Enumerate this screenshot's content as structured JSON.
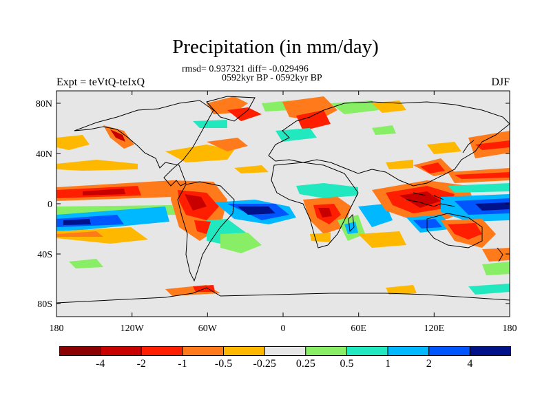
{
  "title": "Precipitation (in mm/day)",
  "stats_line": "rmsd= 0.937321 diff= -0.029496",
  "period_line": "0592kyr BP - 0592kyr BP",
  "experiment_label": "Expt = teVtQ-teIxQ",
  "season_label": "DJF",
  "lat_ticks": [
    "80N",
    "40N",
    "0",
    "40S",
    "80S"
  ],
  "lon_ticks": [
    "180",
    "120W",
    "60W",
    "0",
    "60E",
    "120E",
    "180"
  ],
  "colorbar": {
    "colors": [
      "#8b0000",
      "#c90000",
      "#ff1e00",
      "#ff7a1a",
      "#ffb800",
      "#e6e6e6",
      "#88ee66",
      "#22e8c0",
      "#00b8ff",
      "#0055ff",
      "#00128a"
    ],
    "labels": [
      "-4",
      "-2",
      "-1",
      "-0.5",
      "-0.25",
      "0.25",
      "0.5",
      "1",
      "2",
      "4"
    ]
  },
  "colors": {
    "background_field": "#e6e6e6",
    "coastline": "#000000"
  }
}
